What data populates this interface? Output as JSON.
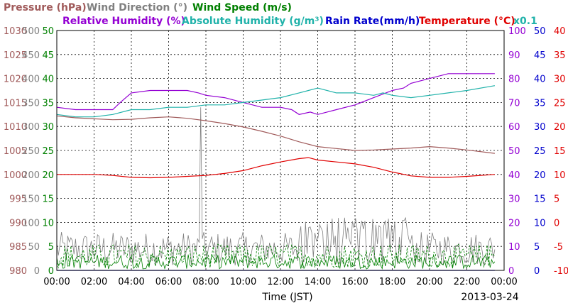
{
  "chart_data": {
    "type": "line",
    "date_label": "2013-03-24",
    "xlabel": "Time (JST)",
    "x_ticks": [
      "00:00",
      "02:00",
      "04:00",
      "06:00",
      "08:00",
      "10:00",
      "12:00",
      "14:00",
      "16:00",
      "18:00",
      "20:00",
      "22:00",
      "00:00"
    ],
    "x_range_hours": [
      0,
      24
    ],
    "grid": true,
    "legend_row1": [
      {
        "label": "Pressure (hPa)",
        "color": "#a05a5a"
      },
      {
        "label": "Wind Direction (°)",
        "color": "#808080"
      },
      {
        "label": "Wind Speed (m/s)",
        "color": "#008000"
      }
    ],
    "legend_row2": [
      {
        "label": "Relative Humidity (%)",
        "color": "#9400d3"
      },
      {
        "label": "Absolute Humidity (g/m³)",
        "color": "#20b2aa"
      },
      {
        "label": "Rain Rate(mm/h)",
        "color": "#0000cd"
      },
      {
        "label": "Temperature (°C)",
        "color": "#e00000"
      }
    ],
    "x01_label": "x0.1",
    "axes": {
      "pressure": {
        "min": 980,
        "max": 1030,
        "ticks": [
          "1030",
          "1025",
          "1020",
          "1015",
          "1010",
          "1005",
          "1000",
          "995",
          "990",
          "985",
          "980"
        ],
        "color": "#a05a5a"
      },
      "wind_direction": {
        "min": 0,
        "max": 500,
        "ticks": [
          "500",
          "450",
          "400",
          "350",
          "300",
          "250",
          "200",
          "150",
          "100",
          "50",
          "0"
        ],
        "color": "#808080"
      },
      "wind_speed": {
        "min": 0,
        "max": 50,
        "ticks": [
          "50",
          "45",
          "40",
          "35",
          "30",
          "25",
          "20",
          "15",
          "10",
          "5",
          "0"
        ],
        "color": "#008000"
      },
      "humidity": {
        "min": 0,
        "max": 100,
        "ticks": [
          "100",
          "90",
          "80",
          "70",
          "60",
          "50",
          "40",
          "30",
          "20",
          "10",
          "0"
        ],
        "color": "#9400d3"
      },
      "rain_rate": {
        "min": 0,
        "max": 50,
        "ticks": [
          "50",
          "45",
          "40",
          "35",
          "30",
          "25",
          "20",
          "15",
          "10",
          "5",
          "0"
        ],
        "color": "#0000cd"
      },
      "temperature": {
        "min": -10,
        "max": 40,
        "ticks": [
          "40",
          "35",
          "30",
          "25",
          "20",
          "15",
          "10",
          "5",
          "0",
          "-5",
          "-10"
        ],
        "color": "#e00000"
      }
    },
    "series": [
      {
        "name": "Pressure (hPa)",
        "axis": "pressure",
        "color": "#a05a5a",
        "x": [
          0,
          1,
          2,
          3,
          4,
          5,
          6,
          7,
          8,
          9,
          10,
          11,
          12,
          13,
          14,
          15,
          16,
          17,
          18,
          19,
          20,
          21,
          22,
          23.5
        ],
        "values": [
          1012.2,
          1011.8,
          1011.6,
          1011.4,
          1011.5,
          1011.8,
          1012.0,
          1011.7,
          1011.2,
          1010.6,
          1009.9,
          1009.0,
          1008.0,
          1006.8,
          1005.8,
          1005.4,
          1005.0,
          1005.1,
          1005.3,
          1005.5,
          1005.8,
          1005.5,
          1005.1,
          1004.4
        ]
      },
      {
        "name": "Relative Humidity (%)",
        "axis": "humidity",
        "color": "#9400d3",
        "x": [
          0,
          1,
          2,
          3,
          3.4,
          4,
          5,
          6,
          7,
          7.6,
          8,
          9,
          10,
          11,
          12,
          12.6,
          13,
          13.6,
          14,
          14.5,
          15,
          16,
          17,
          18,
          18.6,
          19,
          20,
          21,
          22,
          23.5
        ],
        "values": [
          68,
          67,
          67,
          67,
          70,
          74,
          75,
          75,
          75,
          74,
          73,
          72,
          70,
          68,
          68,
          67,
          65,
          66,
          65,
          66,
          67,
          69,
          72,
          75,
          76,
          78,
          80,
          82,
          82,
          82
        ]
      },
      {
        "name": "Absolute Humidity (g/m³)",
        "axis": "humidity",
        "color": "#20b2aa",
        "x": [
          0,
          1,
          2,
          3,
          4,
          5,
          6,
          7,
          8,
          9,
          10,
          11,
          12,
          13,
          13.5,
          14,
          15,
          16,
          17,
          17.5,
          18,
          19,
          20,
          21,
          22,
          23.5
        ],
        "values": [
          65,
          64,
          64,
          65,
          67,
          67,
          68,
          68,
          69,
          69,
          70,
          71,
          72,
          74,
          75,
          76,
          74,
          74,
          73,
          74,
          73,
          72,
          73,
          74,
          75,
          77
        ]
      },
      {
        "name": "Temperature (°C)",
        "axis": "temperature",
        "color": "#e00000",
        "x": [
          0,
          1,
          2,
          3,
          4,
          5,
          6,
          7,
          8,
          9,
          10,
          11,
          12,
          13,
          13.5,
          14,
          15,
          16,
          17,
          18,
          19,
          20,
          21,
          22,
          23.5
        ],
        "values": [
          10.0,
          10.0,
          10.0,
          9.8,
          9.4,
          9.3,
          9.4,
          9.6,
          9.8,
          10.2,
          10.8,
          11.8,
          12.6,
          13.3,
          13.5,
          13.0,
          12.6,
          12.2,
          11.5,
          10.5,
          9.7,
          9.4,
          9.4,
          9.6,
          10.0
        ]
      },
      {
        "name": "Rain Rate(mm/h)",
        "axis": "rain_rate",
        "color": "#0000cd",
        "x": [
          0,
          23.5
        ],
        "values": [
          0,
          0
        ]
      }
    ],
    "wind_direction_note": "noisy trace between ~0° and ~100°, spike to ~340° near 07:45",
    "wind_speed_note": "noisy traces between 0 and ~6 m/s"
  }
}
